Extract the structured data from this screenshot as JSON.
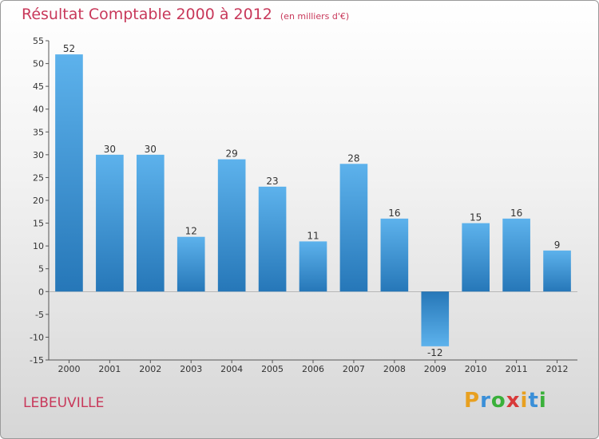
{
  "header": {
    "title": "Résultat Comptable 2000 à 2012",
    "subtitle": "(en milliers d'€)"
  },
  "commune": "LEBEUVILLE",
  "logo": {
    "letters": [
      "P",
      "r",
      "o",
      "x",
      "i",
      "t",
      "i"
    ],
    "colors": [
      "#e8a020",
      "#3a8fd8",
      "#3ab03a",
      "#d83a3a",
      "#e8a020",
      "#3a8fd8",
      "#3ab03a"
    ]
  },
  "chart_data": {
    "type": "bar",
    "categories": [
      "2000",
      "2001",
      "2002",
      "2003",
      "2004",
      "2005",
      "2006",
      "2007",
      "2008",
      "2009",
      "2010",
      "2011",
      "2012"
    ],
    "values": [
      52,
      30,
      30,
      12,
      29,
      23,
      11,
      28,
      16,
      -12,
      15,
      16,
      9
    ],
    "value_labels": [
      "52",
      "30",
      "30",
      "12",
      "29",
      "23",
      "11",
      "28",
      "16",
      "-12",
      "15",
      "16",
      "9"
    ],
    "ylim": [
      -15,
      55
    ],
    "yticks": [
      -15,
      -10,
      -5,
      0,
      5,
      10,
      15,
      20,
      25,
      30,
      35,
      40,
      45,
      50,
      55
    ],
    "ytick_labels": [
      "-15",
      "-10",
      "-5",
      "0",
      "5",
      "10",
      "15",
      "20",
      "25",
      "30",
      "35",
      "40",
      "45",
      "50",
      "55"
    ],
    "grid": false,
    "bar_color": "#3f97da"
  }
}
